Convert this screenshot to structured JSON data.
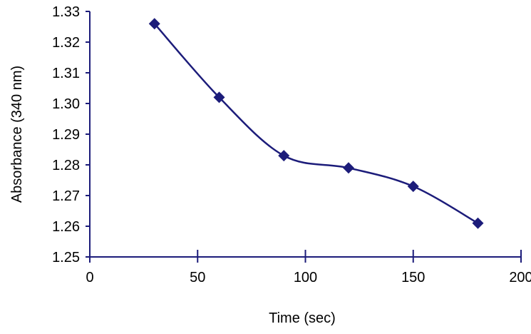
{
  "chart_data": {
    "type": "line",
    "xlabel": "Time (sec)",
    "ylabel": "Absorbance (340 nm)",
    "xlim": [
      0,
      200
    ],
    "ylim": [
      1.25,
      1.33
    ],
    "xticks": [
      "0",
      "50",
      "100",
      "150",
      "200"
    ],
    "yticks": [
      "1.25",
      "1.26",
      "1.27",
      "1.28",
      "1.29",
      "1.30",
      "1.31",
      "1.32",
      "1.33"
    ],
    "grid": false,
    "legend": "none",
    "smooth": true,
    "marker": "diamond",
    "series": [
      {
        "color": "#1c1c7a",
        "x": [
          30,
          60,
          90,
          120,
          150,
          180
        ],
        "y": [
          1.326,
          1.302,
          1.283,
          1.279,
          1.273,
          1.261
        ]
      }
    ]
  }
}
